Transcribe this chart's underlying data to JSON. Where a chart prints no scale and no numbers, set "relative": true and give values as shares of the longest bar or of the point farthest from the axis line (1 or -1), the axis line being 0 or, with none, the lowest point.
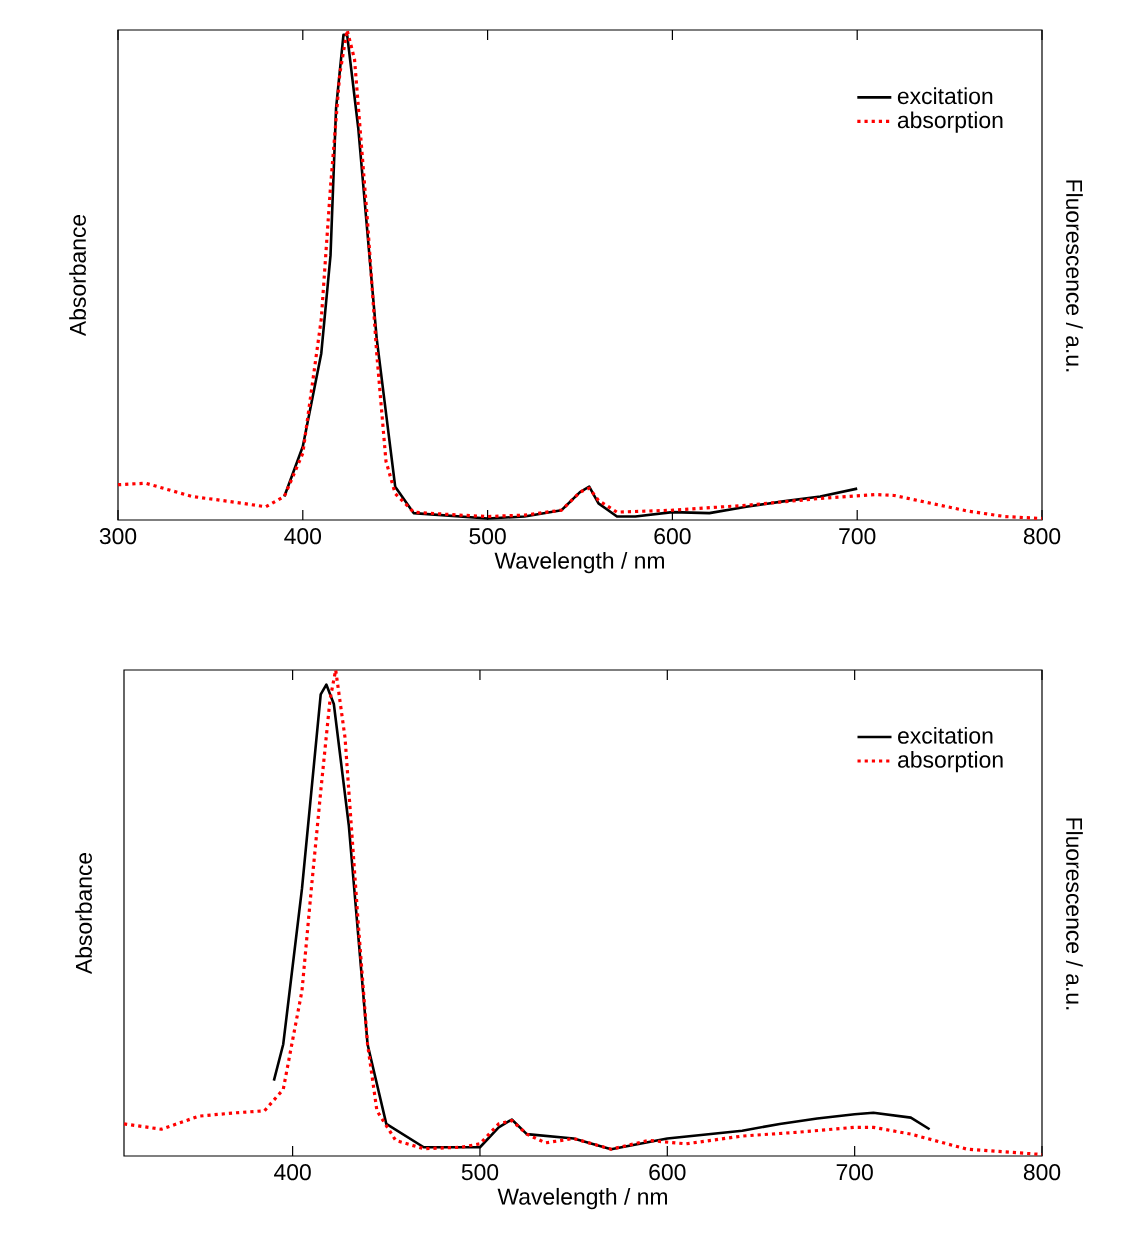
{
  "chart_data": [
    {
      "type": "line",
      "xlabel": "Wavelength / nm",
      "ylabel": "Absorbance",
      "y2label": "Fluorescence / a.u.",
      "relative": true,
      "xlim": [
        300,
        800
      ],
      "xticks": [
        300,
        400,
        500,
        600,
        700,
        800
      ],
      "legend": "top right",
      "grid": false,
      "series": [
        {
          "name": "excitation",
          "color": "#000000",
          "line_style": "solid",
          "x": [
            390,
            400,
            410,
            415,
            418,
            422,
            424,
            430,
            440,
            450,
            460,
            500,
            520,
            540,
            550,
            555,
            560,
            570,
            580,
            600,
            620,
            640,
            660,
            680,
            700
          ],
          "values": [
            0.048,
            0.15,
            0.34,
            0.54,
            0.84,
            0.99,
            0.99,
            0.8,
            0.37,
            0.068,
            0.014,
            0.003,
            0.007,
            0.02,
            0.057,
            0.068,
            0.034,
            0.007,
            0.007,
            0.016,
            0.014,
            0.027,
            0.038,
            0.048,
            0.064
          ]
        },
        {
          "name": "absorption",
          "color": "#ff0000",
          "line_style": "dotted",
          "x": [
            300,
            315,
            340,
            360,
            380,
            390,
            400,
            410,
            415,
            420,
            424,
            428,
            435,
            440,
            445,
            450,
            460,
            480,
            500,
            520,
            540,
            550,
            555,
            560,
            570,
            600,
            640,
            680,
            710,
            720,
            740,
            760,
            780,
            800
          ],
          "values": [
            0.072,
            0.075,
            0.048,
            0.038,
            0.027,
            0.048,
            0.136,
            0.41,
            0.68,
            0.91,
            1.0,
            0.94,
            0.61,
            0.34,
            0.12,
            0.054,
            0.016,
            0.011,
            0.007,
            0.01,
            0.02,
            0.057,
            0.065,
            0.04,
            0.016,
            0.02,
            0.03,
            0.044,
            0.052,
            0.05,
            0.034,
            0.018,
            0.007,
            0.003
          ]
        }
      ]
    },
    {
      "type": "line",
      "xlabel": "Wavelength / nm",
      "ylabel": "Absorbance",
      "y2label": "Fluorescence / a.u.",
      "relative": true,
      "xlim": [
        310,
        800
      ],
      "xticks": [
        400,
        500,
        600,
        700,
        800
      ],
      "legend": "top right",
      "grid": false,
      "series": [
        {
          "name": "excitation",
          "color": "#000000",
          "line_style": "solid",
          "x": [
            390,
            395,
            400,
            405,
            410,
            415,
            418,
            422,
            430,
            440,
            450,
            470,
            500,
            510,
            517,
            525,
            550,
            570,
            600,
            640,
            660,
            680,
            700,
            710,
            730,
            740
          ],
          "values": [
            0.155,
            0.23,
            0.39,
            0.55,
            0.75,
            0.95,
            0.97,
            0.93,
            0.68,
            0.23,
            0.066,
            0.018,
            0.018,
            0.059,
            0.075,
            0.045,
            0.036,
            0.014,
            0.036,
            0.052,
            0.066,
            0.077,
            0.086,
            0.089,
            0.079,
            0.055
          ]
        },
        {
          "name": "absorption",
          "color": "#ff0000",
          "line_style": "dotted",
          "x": [
            310,
            330,
            350,
            370,
            385,
            395,
            405,
            410,
            415,
            420,
            423,
            428,
            435,
            440,
            445,
            455,
            470,
            490,
            500,
            510,
            517,
            525,
            535,
            550,
            570,
            590,
            610,
            640,
            670,
            700,
            710,
            730,
            760,
            800
          ],
          "values": [
            0.066,
            0.055,
            0.082,
            0.089,
            0.093,
            0.137,
            0.34,
            0.55,
            0.75,
            0.94,
            1.0,
            0.86,
            0.48,
            0.23,
            0.093,
            0.032,
            0.015,
            0.018,
            0.025,
            0.066,
            0.073,
            0.045,
            0.027,
            0.036,
            0.014,
            0.032,
            0.025,
            0.041,
            0.049,
            0.059,
            0.059,
            0.045,
            0.014,
            0.003
          ]
        }
      ]
    }
  ]
}
